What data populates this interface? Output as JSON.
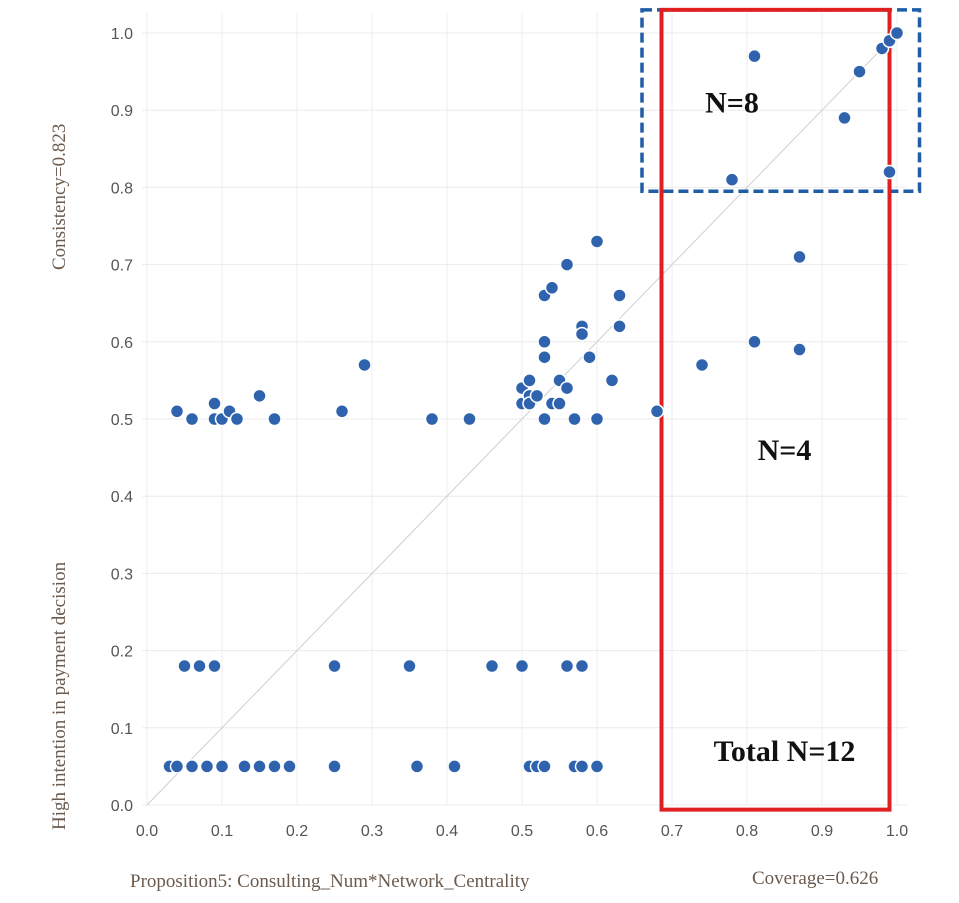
{
  "chart_data": {
    "type": "scatter",
    "xlabel": "Proposition5: Consulting_Num*Network_Centrality",
    "ylabel": "High intention in payment decision",
    "consistency_label": "Consistency=0.823",
    "coverage_label": "Coverage=0.626",
    "xlim": [
      0.0,
      1.0
    ],
    "ylim": [
      0.0,
      1.0
    ],
    "x_ticks": [
      "0.0",
      "0.1",
      "0.2",
      "0.3",
      "0.4",
      "0.5",
      "0.6",
      "0.7",
      "0.8",
      "0.9",
      "1.0"
    ],
    "y_ticks": [
      "0.0",
      "0.1",
      "0.2",
      "0.3",
      "0.4",
      "0.5",
      "0.6",
      "0.7",
      "0.8",
      "0.9",
      "1.0"
    ],
    "grid": true,
    "diagonal_reference": true,
    "marker_color": "#2f63ad",
    "annotations": [
      {
        "text": "N=8",
        "x": 0.78,
        "y": 0.91
      },
      {
        "text": "N=4",
        "x": 0.85,
        "y": 0.46
      },
      {
        "text": "Total N=12",
        "x": 0.85,
        "y": 0.07
      }
    ],
    "regions": [
      {
        "style": "dashed",
        "color": "#1f5da8",
        "x": [
          0.66,
          1.03
        ],
        "y": [
          0.795,
          1.03
        ]
      },
      {
        "style": "solid",
        "color": "#e02020",
        "x": [
          0.686,
          0.99
        ],
        "y": [
          -0.006,
          1.03
        ]
      }
    ],
    "points": [
      [
        0.04,
        0.51
      ],
      [
        0.06,
        0.5
      ],
      [
        0.09,
        0.52
      ],
      [
        0.09,
        0.5
      ],
      [
        0.1,
        0.5
      ],
      [
        0.11,
        0.51
      ],
      [
        0.12,
        0.5
      ],
      [
        0.15,
        0.53
      ],
      [
        0.17,
        0.5
      ],
      [
        0.26,
        0.51
      ],
      [
        0.29,
        0.57
      ],
      [
        0.38,
        0.5
      ],
      [
        0.43,
        0.5
      ],
      [
        0.5,
        0.54
      ],
      [
        0.5,
        0.52
      ],
      [
        0.51,
        0.55
      ],
      [
        0.51,
        0.53
      ],
      [
        0.51,
        0.52
      ],
      [
        0.52,
        0.53
      ],
      [
        0.53,
        0.66
      ],
      [
        0.53,
        0.6
      ],
      [
        0.53,
        0.58
      ],
      [
        0.53,
        0.5
      ],
      [
        0.54,
        0.67
      ],
      [
        0.54,
        0.52
      ],
      [
        0.55,
        0.55
      ],
      [
        0.55,
        0.52
      ],
      [
        0.56,
        0.7
      ],
      [
        0.56,
        0.54
      ],
      [
        0.57,
        0.5
      ],
      [
        0.58,
        0.62
      ],
      [
        0.58,
        0.61
      ],
      [
        0.59,
        0.58
      ],
      [
        0.6,
        0.73
      ],
      [
        0.6,
        0.5
      ],
      [
        0.62,
        0.55
      ],
      [
        0.63,
        0.66
      ],
      [
        0.63,
        0.62
      ],
      [
        0.68,
        0.51
      ],
      [
        0.74,
        0.57
      ],
      [
        0.81,
        0.6
      ],
      [
        0.87,
        0.71
      ],
      [
        0.87,
        0.59
      ],
      [
        0.78,
        0.81
      ],
      [
        0.81,
        0.97
      ],
      [
        0.93,
        0.89
      ],
      [
        0.95,
        0.95
      ],
      [
        0.98,
        0.98
      ],
      [
        0.99,
        0.99
      ],
      [
        1.0,
        1.0
      ],
      [
        0.99,
        0.82
      ],
      [
        0.05,
        0.18
      ],
      [
        0.07,
        0.18
      ],
      [
        0.09,
        0.18
      ],
      [
        0.25,
        0.18
      ],
      [
        0.35,
        0.18
      ],
      [
        0.46,
        0.18
      ],
      [
        0.5,
        0.18
      ],
      [
        0.56,
        0.18
      ],
      [
        0.58,
        0.18
      ],
      [
        0.03,
        0.05
      ],
      [
        0.04,
        0.05
      ],
      [
        0.06,
        0.05
      ],
      [
        0.08,
        0.05
      ],
      [
        0.1,
        0.05
      ],
      [
        0.13,
        0.05
      ],
      [
        0.15,
        0.05
      ],
      [
        0.17,
        0.05
      ],
      [
        0.19,
        0.05
      ],
      [
        0.25,
        0.05
      ],
      [
        0.36,
        0.05
      ],
      [
        0.41,
        0.05
      ],
      [
        0.51,
        0.05
      ],
      [
        0.52,
        0.05
      ],
      [
        0.53,
        0.05
      ],
      [
        0.57,
        0.05
      ],
      [
        0.58,
        0.05
      ],
      [
        0.6,
        0.05
      ]
    ]
  }
}
